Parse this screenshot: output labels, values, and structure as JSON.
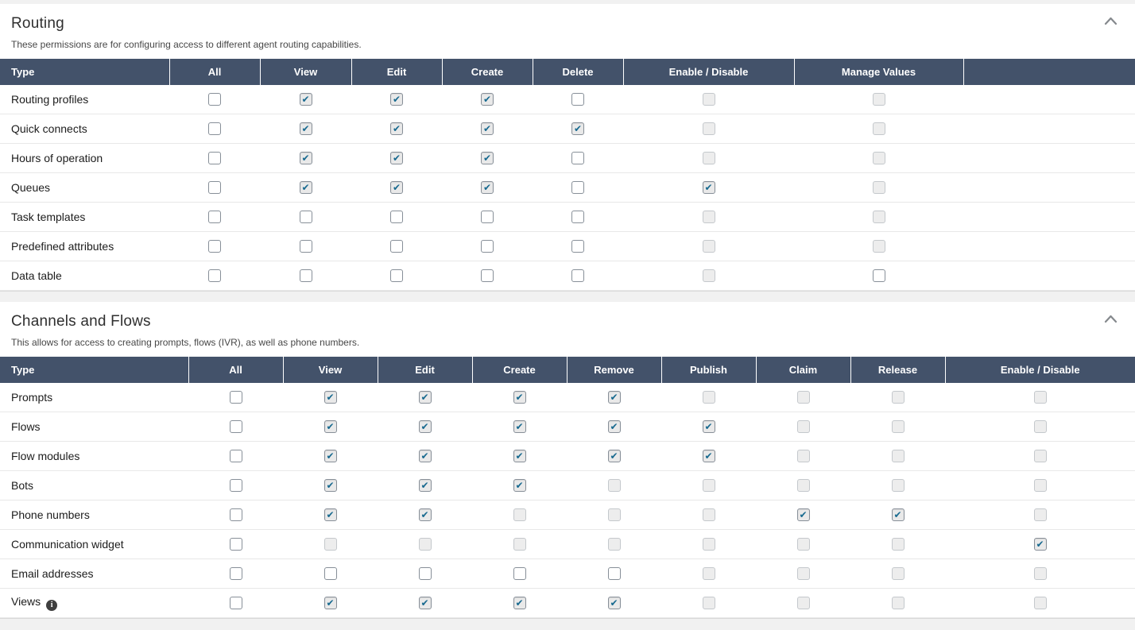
{
  "colors": {
    "table_header_bg": "#43526a",
    "check_mark": "#17698f",
    "page_bg": "#f1f1f1"
  },
  "glyphs": {
    "check": "✔",
    "info": "i"
  },
  "sections": [
    {
      "title": "Routing",
      "description": "These permissions are for configuring access to different agent routing capabilities.",
      "collapse_icon": "chevron-up",
      "columns": [
        "Type",
        "All",
        "View",
        "Edit",
        "Create",
        "Delete",
        "Enable / Disable",
        "Manage Values",
        ""
      ],
      "rows": [
        {
          "label": "Routing profiles",
          "states": [
            "unchecked",
            "checked",
            "checked",
            "checked",
            "unchecked",
            "disabled",
            "disabled"
          ]
        },
        {
          "label": "Quick connects",
          "states": [
            "unchecked",
            "checked",
            "checked",
            "checked",
            "checked",
            "disabled",
            "disabled"
          ]
        },
        {
          "label": "Hours of operation",
          "states": [
            "unchecked",
            "checked",
            "checked",
            "checked",
            "unchecked",
            "disabled",
            "disabled"
          ]
        },
        {
          "label": "Queues",
          "states": [
            "unchecked",
            "checked",
            "checked",
            "checked",
            "unchecked",
            "checked",
            "disabled"
          ]
        },
        {
          "label": "Task templates",
          "states": [
            "unchecked",
            "unchecked",
            "unchecked",
            "unchecked",
            "unchecked",
            "disabled",
            "disabled"
          ]
        },
        {
          "label": "Predefined attributes",
          "states": [
            "unchecked",
            "unchecked",
            "unchecked",
            "unchecked",
            "unchecked",
            "disabled",
            "disabled"
          ]
        },
        {
          "label": "Data table",
          "states": [
            "unchecked",
            "unchecked",
            "unchecked",
            "unchecked",
            "unchecked",
            "disabled",
            "unchecked"
          ]
        }
      ]
    },
    {
      "title": "Channels and Flows",
      "description": "This allows for access to creating prompts, flows (IVR), as well as phone numbers.",
      "collapse_icon": "chevron-up",
      "columns": [
        "Type",
        "All",
        "View",
        "Edit",
        "Create",
        "Remove",
        "Publish",
        "Claim",
        "Release",
        "Enable / Disable"
      ],
      "rows": [
        {
          "label": "Prompts",
          "states": [
            "unchecked",
            "checked",
            "checked",
            "checked",
            "checked",
            "disabled",
            "disabled",
            "disabled",
            "disabled"
          ]
        },
        {
          "label": "Flows",
          "states": [
            "unchecked",
            "checked",
            "checked",
            "checked",
            "checked",
            "checked",
            "disabled",
            "disabled",
            "disabled"
          ]
        },
        {
          "label": "Flow modules",
          "states": [
            "unchecked",
            "checked",
            "checked",
            "checked",
            "checked",
            "checked",
            "disabled",
            "disabled",
            "disabled"
          ]
        },
        {
          "label": "Bots",
          "states": [
            "unchecked",
            "checked",
            "checked",
            "checked",
            "disabled",
            "disabled",
            "disabled",
            "disabled",
            "disabled"
          ]
        },
        {
          "label": "Phone numbers",
          "states": [
            "unchecked",
            "checked",
            "checked",
            "disabled",
            "disabled",
            "disabled",
            "checked",
            "checked",
            "disabled"
          ]
        },
        {
          "label": "Communication widget",
          "states": [
            "unchecked",
            "disabled",
            "disabled",
            "disabled",
            "disabled",
            "disabled",
            "disabled",
            "disabled",
            "checked"
          ]
        },
        {
          "label": "Email addresses",
          "states": [
            "unchecked",
            "unchecked",
            "unchecked",
            "unchecked",
            "unchecked",
            "disabled",
            "disabled",
            "disabled",
            "disabled"
          ]
        },
        {
          "label": "Views",
          "info_icon": true,
          "states": [
            "unchecked",
            "checked",
            "checked",
            "checked",
            "checked",
            "disabled",
            "disabled",
            "disabled",
            "disabled"
          ]
        }
      ]
    }
  ]
}
